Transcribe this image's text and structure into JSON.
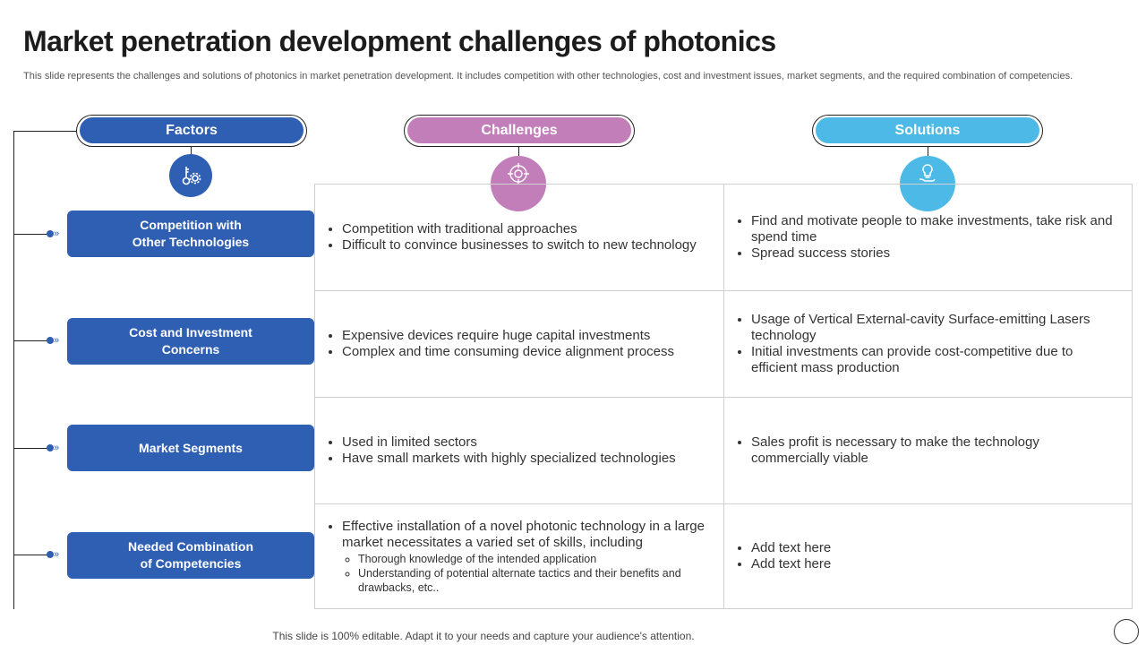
{
  "title": "Market penetration development challenges of photonics",
  "subtitle": "This slide represents the challenges and solutions of photonics in market penetration development. It includes competition with other technologies, cost and investment issues, market segments, and the required combination of competencies.",
  "headers": {
    "factors": "Factors",
    "challenges": "Challenges",
    "solutions": "Solutions"
  },
  "icons": {
    "factors": "gear-key-icon",
    "challenges": "target-icon",
    "solutions": "lightbulb-hand-icon"
  },
  "colors": {
    "factors": "#2f5fb3",
    "challenges": "#c27eb9",
    "solutions": "#4cb9e6"
  },
  "rows": [
    {
      "factor": "Competition with\nOther Technologies",
      "challenges": [
        "Competition with traditional approaches",
        "Difficult to convince businesses to switch to new technology"
      ],
      "solutions": [
        "Find and motivate people to make investments, take risk and spend time",
        "Spread success stories"
      ]
    },
    {
      "factor": "Cost and Investment\nConcerns",
      "challenges": [
        "Expensive devices require huge capital investments",
        "Complex and time consuming device alignment process"
      ],
      "solutions": [
        "Usage of Vertical External-cavity Surface-emitting Lasers technology",
        "Initial investments can provide cost-competitive due to efficient mass production"
      ]
    },
    {
      "factor": "Market Segments",
      "challenges": [
        "Used in limited sectors",
        "Have small markets with highly specialized technologies"
      ],
      "solutions": [
        "Sales profit is necessary to make the technology commercially viable"
      ]
    },
    {
      "factor": "Needed Combination\nof Competencies",
      "challenges": [
        "Effective installation of a novel photonic technology in a large market necessitates a varied set of skills, including"
      ],
      "challenge_subitems": [
        "Thorough knowledge of the intended application",
        "Understanding of potential alternate tactics and their benefits and drawbacks, etc.."
      ],
      "solutions": [
        "Add text here",
        "Add text here"
      ]
    }
  ],
  "footer": "This slide is 100% editable. Adapt it to your needs and capture your audience's attention."
}
